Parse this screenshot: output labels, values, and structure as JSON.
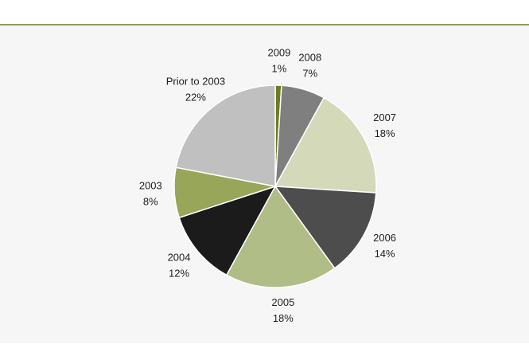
{
  "chart_data": {
    "type": "pie",
    "categories": [
      "2009",
      "2008",
      "2007",
      "2006",
      "2005",
      "2004",
      "2003",
      "Prior to 2003"
    ],
    "values": [
      1,
      7,
      18,
      14,
      18,
      12,
      8,
      22
    ],
    "value_labels": [
      "1%",
      "7%",
      "18%",
      "14%",
      "18%",
      "12%",
      "8%",
      "22%"
    ],
    "colors": [
      "#6b7d22",
      "#7f7f7f",
      "#d4d9ba",
      "#4d4d4d",
      "#b1bd86",
      "#1b1b1b",
      "#98a65a",
      "#c0c0c0"
    ]
  }
}
